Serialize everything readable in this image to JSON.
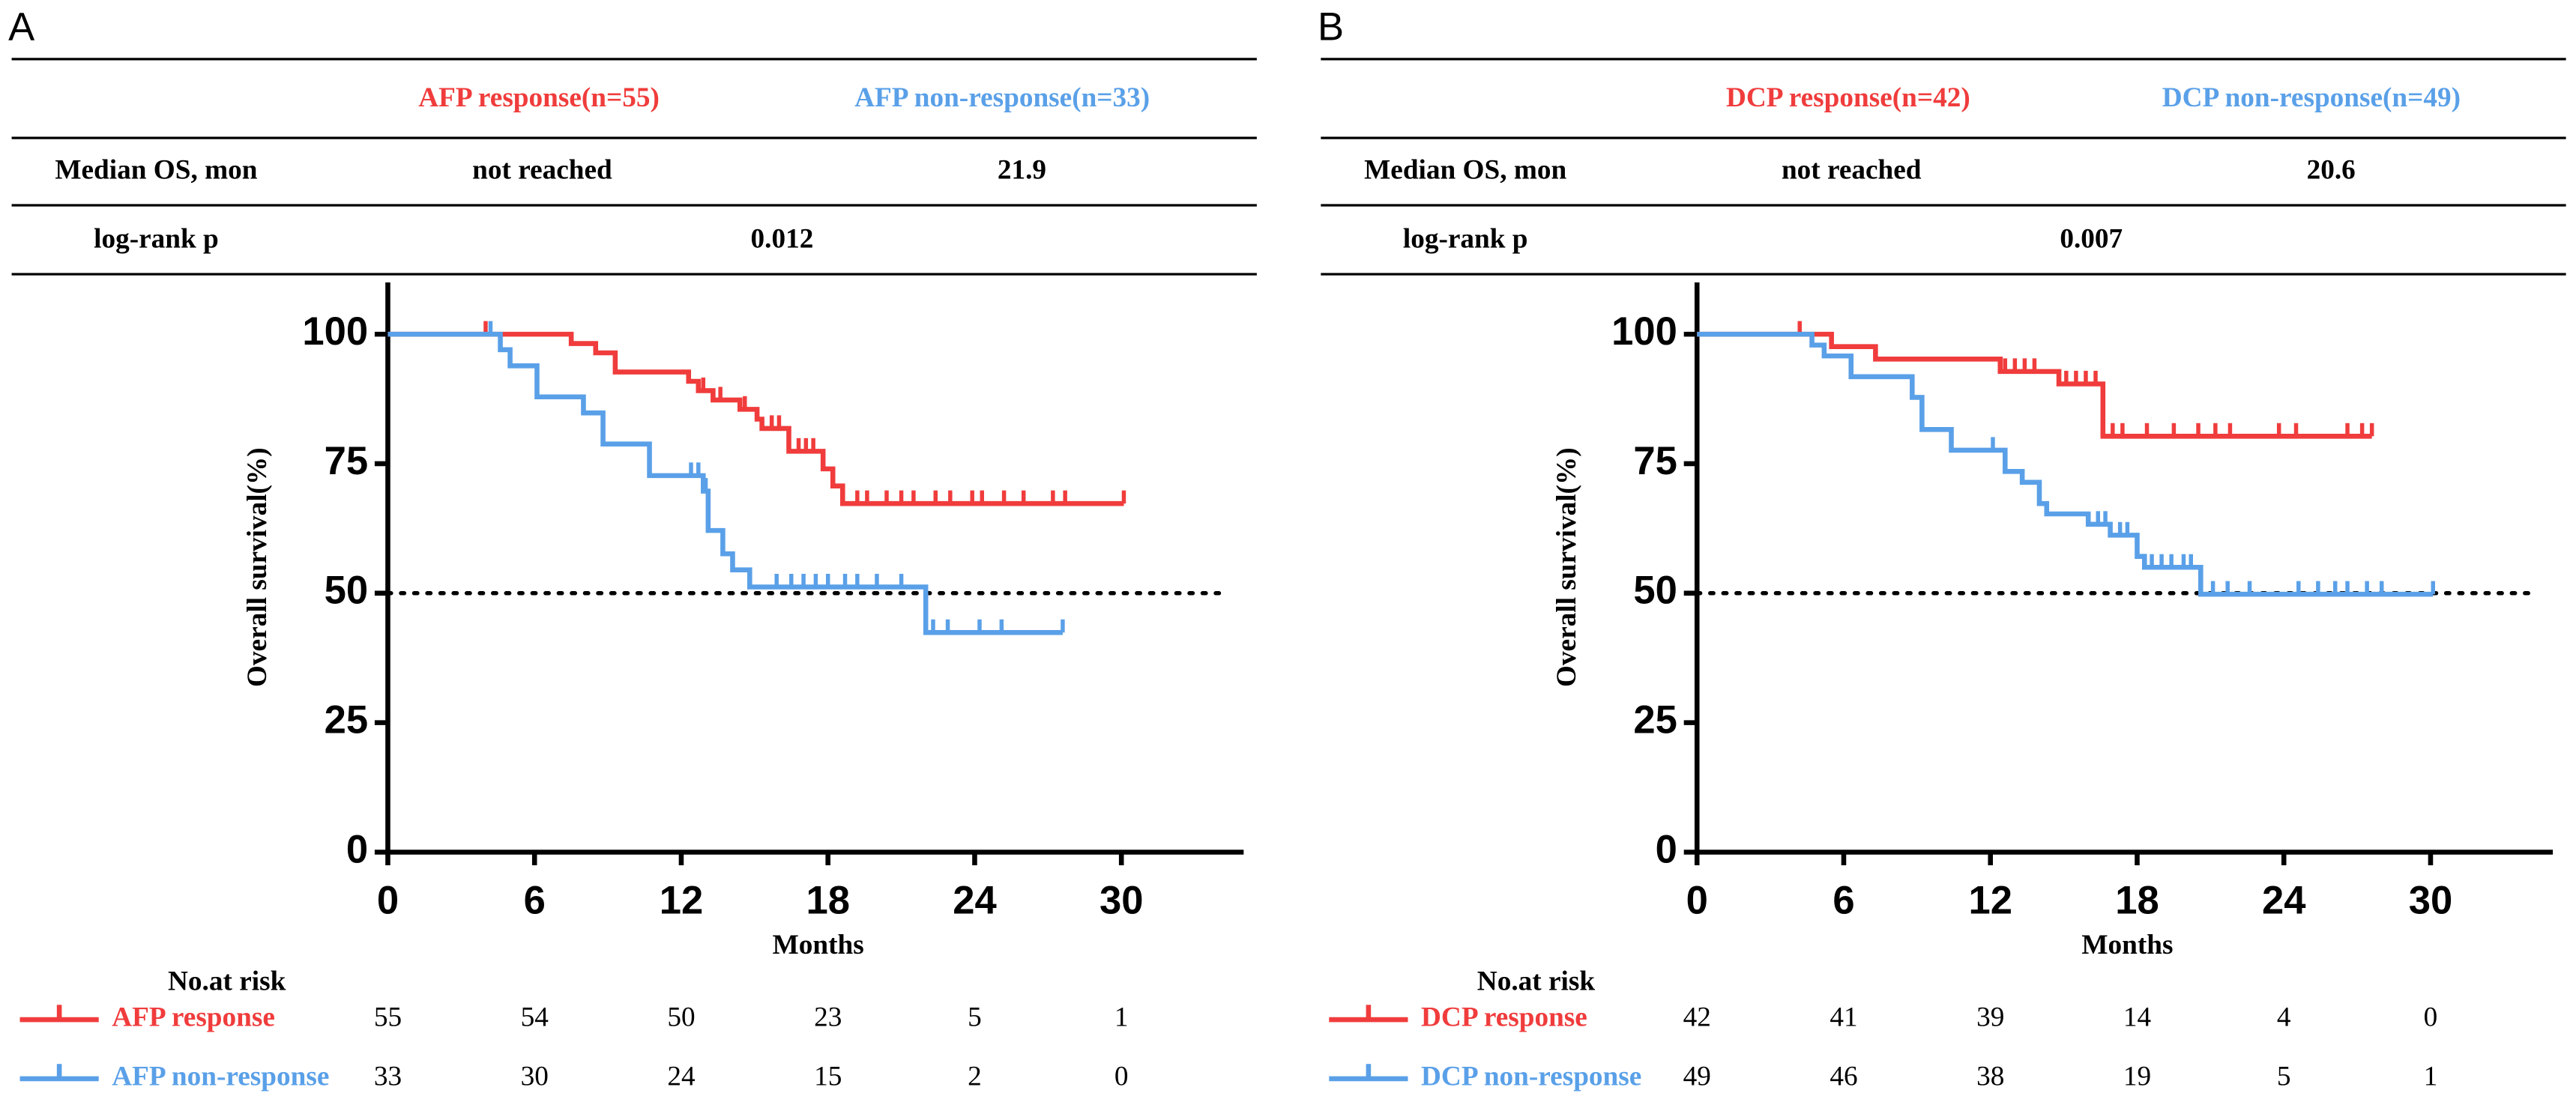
{
  "chart_data": [
    {
      "type": "step",
      "panel": "A",
      "table": {
        "columns": [
          "AFP response(n=55)",
          "AFP non-response(n=33)"
        ],
        "rows": [
          {
            "label": "Median OS, mon",
            "cells": [
              "not reached",
              "21.9"
            ]
          },
          {
            "label": "log-rank p",
            "cells": [
              "0.012"
            ]
          }
        ]
      },
      "x_label": "Months",
      "y_label": "Overall survival(%)",
      "xlim": [
        0,
        35
      ],
      "ylim": [
        0,
        110
      ],
      "xticks": [
        0,
        6,
        12,
        18,
        24,
        30
      ],
      "yticks": [
        0,
        25,
        50,
        75,
        100
      ],
      "reference_line": 50,
      "series": [
        {
          "name": "AFP response",
          "color": "#f03c3c",
          "x": [
            0,
            7.5,
            8.5,
            9.3,
            12.3,
            12.7,
            13.3,
            14.4,
            15.1,
            15.3,
            16.4,
            17.8,
            18.2,
            18.6,
            30.1
          ],
          "values": [
            100,
            98.2,
            96.4,
            92.7,
            90.9,
            89.1,
            87.3,
            85.5,
            83.6,
            81.8,
            77.4,
            74,
            70.7,
            67.3,
            67.3
          ],
          "censored_x": [
            4,
            12.9,
            13.6,
            14.6,
            15.7,
            16,
            16.8,
            17.1,
            17.4,
            19.2,
            19.6,
            20.4,
            21,
            21.5,
            22.4,
            23,
            23.9,
            24.3,
            25.2,
            26,
            27.2,
            27.7,
            30.1
          ],
          "censored_values": [
            100,
            89.1,
            87.3,
            85.5,
            81.8,
            81.8,
            77.4,
            77.4,
            77.4,
            67.3,
            67.3,
            67.3,
            67.3,
            67.3,
            67.3,
            67.3,
            67.3,
            67.3,
            67.3,
            67.3,
            67.3,
            67.3,
            67.3
          ]
        },
        {
          "name": "AFP non-response",
          "color": "#5aa0e8",
          "x": [
            0,
            4.6,
            5,
            6.1,
            8,
            8.8,
            10.7,
            12.9,
            13.1,
            13.7,
            14.1,
            14.8,
            22,
            27.6
          ],
          "values": [
            100,
            97,
            93.9,
            87.9,
            84.8,
            78.8,
            72.7,
            69.7,
            62.1,
            57.6,
            54.5,
            51.2,
            42.4,
            42.4
          ],
          "censored_x": [
            4.2,
            12.4,
            12.7,
            13,
            15.9,
            16.5,
            17,
            17.5,
            18,
            18.7,
            19.2,
            20,
            21,
            22.3,
            22.9,
            24.2,
            25.1,
            27.6
          ],
          "censored_values": [
            100,
            72.7,
            72.7,
            69.7,
            51.2,
            51.2,
            51.2,
            51.2,
            51.2,
            51.2,
            51.2,
            51.2,
            51.2,
            42.4,
            42.4,
            42.4,
            42.4,
            42.4
          ]
        }
      ],
      "risk_table": {
        "title": "No.at risk",
        "counts": [
          [
            55,
            54,
            50,
            23,
            5,
            1
          ],
          [
            33,
            30,
            24,
            15,
            2,
            0
          ]
        ]
      }
    },
    {
      "type": "step",
      "panel": "B",
      "table": {
        "columns": [
          "DCP response(n=42)",
          "DCP non-response(n=49)"
        ],
        "rows": [
          {
            "label": "Median OS, mon",
            "cells": [
              "not reached",
              "20.6"
            ]
          },
          {
            "label": "log-rank p",
            "cells": [
              "0.007"
            ]
          }
        ]
      },
      "x_label": "Months",
      "y_label": "Overall survival(%)",
      "xlim": [
        0,
        35
      ],
      "ylim": [
        0,
        110
      ],
      "xticks": [
        0,
        6,
        12,
        18,
        24,
        30
      ],
      "yticks": [
        0,
        25,
        50,
        75,
        100
      ],
      "reference_line": 50,
      "series": [
        {
          "name": "DCP response",
          "color": "#f03c3c",
          "x": [
            0,
            5.5,
            7.3,
            12.4,
            14.8,
            16.6,
            27.6
          ],
          "values": [
            100,
            97.6,
            95.2,
            92.8,
            90.4,
            80.3,
            80.3
          ],
          "censored_x": [
            4.2,
            12.6,
            13,
            13.4,
            13.8,
            15.1,
            15.5,
            15.9,
            16.3,
            17,
            17.4,
            18.4,
            19.5,
            20.5,
            21.2,
            21.8,
            23.8,
            24.5,
            26.6,
            27.2,
            27.6
          ],
          "censored_values": [
            100,
            92.8,
            92.8,
            92.8,
            92.8,
            90.4,
            90.4,
            90.4,
            90.4,
            80.3,
            80.3,
            80.3,
            80.3,
            80.3,
            80.3,
            80.3,
            80.3,
            80.3,
            80.3,
            80.3,
            80.3
          ]
        },
        {
          "name": "DCP non-response",
          "color": "#5aa0e8",
          "x": [
            0,
            4.7,
            5.2,
            6.3,
            8.8,
            9.2,
            10.4,
            12.6,
            13.3,
            14,
            14.3,
            16,
            16.9,
            18,
            18.3,
            20.6,
            30.1
          ],
          "values": [
            100,
            97.9,
            95.8,
            91.8,
            87.8,
            81.6,
            77.6,
            73.5,
            71.4,
            67.3,
            65.3,
            63.3,
            61.2,
            57.1,
            55,
            49.8,
            49.8
          ],
          "censored_x": [
            12.1,
            16.4,
            16.7,
            17.3,
            17.6,
            18.6,
            19,
            19.4,
            19.9,
            20.2,
            21.1,
            21.7,
            22.6,
            24.6,
            25.4,
            26.1,
            26.6,
            27.4,
            28,
            30.1
          ],
          "censored_values": [
            77.6,
            63.3,
            63.3,
            61.2,
            61.2,
            55,
            55,
            55,
            55,
            55,
            49.8,
            49.8,
            49.8,
            49.8,
            49.8,
            49.8,
            49.8,
            49.8,
            49.8,
            49.8
          ]
        }
      ],
      "risk_table": {
        "title": "No.at risk",
        "counts": [
          [
            42,
            41,
            39,
            14,
            4,
            0
          ],
          [
            49,
            46,
            38,
            19,
            5,
            1
          ]
        ]
      }
    }
  ]
}
